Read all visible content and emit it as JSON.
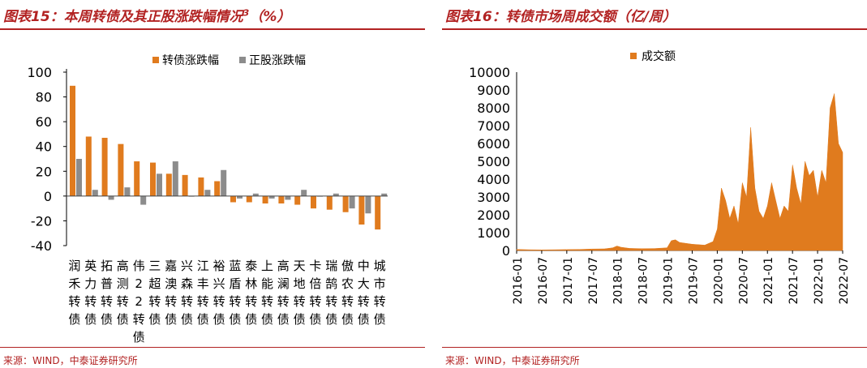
{
  "left_panel": {
    "title_main": "图表15：本周转债及其正股涨跌幅情况",
    "title_sup": "3",
    "title_suffix": "（%）",
    "source": "来源：WIND，中泰证券研究所"
  },
  "right_panel": {
    "title": "图表16：转债市场周成交额（亿/周）",
    "source": "来源：WIND，中泰证券研究所"
  },
  "colors": {
    "orange": "#e07b1e",
    "gray": "#8c8c8c",
    "red": "#b22222"
  },
  "chart_data": [
    {
      "type": "bar",
      "categories": [
        "润禾转债",
        "英力转债",
        "拓普转债",
        "高测转债",
        "伟22转债",
        "三超转债",
        "嘉澳转债",
        "兴森转债",
        "江丰转债",
        "裕兴转债",
        "蓝盾转债",
        "泰林转债",
        "上能转债",
        "高澜转债",
        "天地转债",
        "卡倍转债",
        "瑞鹄转债",
        "傲农转债",
        "中大转债",
        "城市转债"
      ],
      "series": [
        {
          "name": "转债涨跌幅",
          "color": "#e07b1e",
          "values": [
            89,
            48,
            47,
            42,
            28,
            27,
            18,
            17,
            15,
            12,
            -5,
            -5,
            -6,
            -6,
            -7,
            -10,
            -11,
            -13,
            -23,
            -27
          ]
        },
        {
          "name": "正股涨跌幅",
          "color": "#8c8c8c",
          "values": [
            30,
            5,
            -3,
            7,
            -7,
            18,
            28,
            0,
            5,
            21,
            -2,
            2,
            -2,
            -3,
            5,
            0,
            2,
            -10,
            -14,
            2
          ]
        }
      ],
      "yticks": [
        100,
        80,
        60,
        40,
        20,
        0,
        -20,
        -40
      ],
      "ylim": [
        -40,
        100
      ],
      "legend": "top-center"
    },
    {
      "type": "area",
      "series": [
        {
          "name": "成交额",
          "color": "#e07b1e"
        }
      ],
      "xticks": [
        "2016-01",
        "2016-07",
        "2017-01",
        "2017-07",
        "2018-01",
        "2018-07",
        "2019-01",
        "2019-07",
        "2020-01",
        "2020-07",
        "2021-01",
        "2021-07",
        "2022-01",
        "2022-07"
      ],
      "yticks": [
        10000,
        9000,
        8000,
        7000,
        6000,
        5000,
        4000,
        3000,
        2000,
        1000,
        0
      ],
      "ylim": [
        0,
        10000
      ],
      "x": [
        "2016-01",
        "2016-04",
        "2016-07",
        "2016-10",
        "2017-01",
        "2017-04",
        "2017-07",
        "2017-10",
        "2017-12",
        "2018-01",
        "2018-02",
        "2018-04",
        "2018-07",
        "2018-10",
        "2019-01",
        "2019-02",
        "2019-03",
        "2019-04",
        "2019-07",
        "2019-10",
        "2019-12",
        "2020-01",
        "2020-02",
        "2020-03",
        "2020-04",
        "2020-05",
        "2020-06",
        "2020-07",
        "2020-08",
        "2020-09",
        "2020-10",
        "2020-11",
        "2020-12",
        "2021-01",
        "2021-02",
        "2021-03",
        "2021-04",
        "2021-05",
        "2021-06",
        "2021-07",
        "2021-08",
        "2021-09",
        "2021-10",
        "2021-11",
        "2021-12",
        "2022-01",
        "2022-02",
        "2022-03",
        "2022-04",
        "2022-05",
        "2022-06",
        "2022-07"
      ],
      "y": [
        60,
        40,
        30,
        40,
        50,
        60,
        80,
        90,
        150,
        250,
        180,
        120,
        100,
        110,
        150,
        550,
        600,
        450,
        350,
        300,
        500,
        1200,
        3500,
        2800,
        1800,
        2500,
        1500,
        3800,
        3000,
        6900,
        3500,
        2200,
        1800,
        2500,
        3800,
        2800,
        1800,
        2500,
        2200,
        4800,
        3500,
        2600,
        5000,
        4200,
        4500,
        3000,
        4500,
        3800,
        8000,
        8800,
        6000,
        5500
      ]
    }
  ]
}
